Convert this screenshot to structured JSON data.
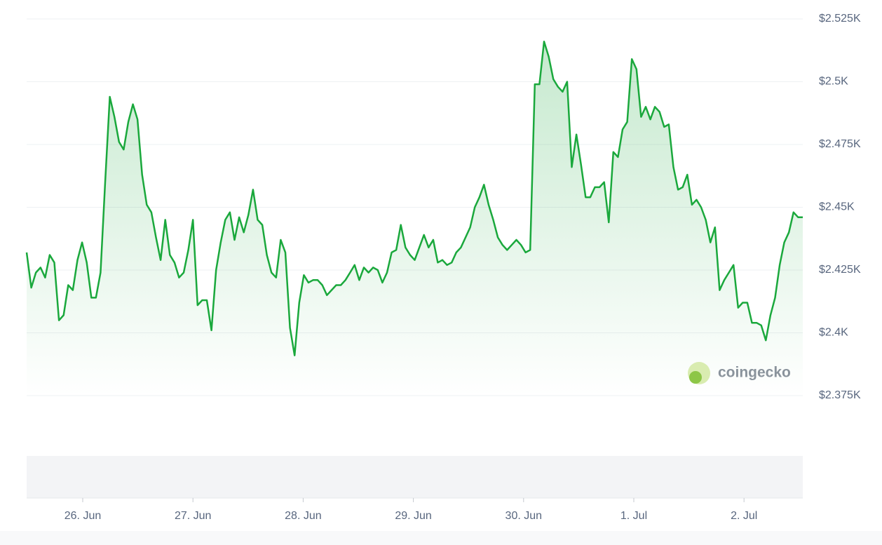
{
  "chart_data": {
    "type": "line",
    "series": [
      {
        "name": "Price",
        "color": "#1aa83c",
        "values": [
          2432,
          2418,
          2424,
          2426,
          2422,
          2431,
          2428,
          2405,
          2407,
          2419,
          2417,
          2429,
          2436,
          2428,
          2414,
          2414,
          2424,
          2460,
          2494,
          2486,
          2476,
          2473,
          2484,
          2491,
          2485,
          2463,
          2451,
          2448,
          2438,
          2429,
          2445,
          2431,
          2428,
          2422,
          2424,
          2433,
          2445,
          2411,
          2413,
          2413,
          2401,
          2425,
          2436,
          2445,
          2448,
          2437,
          2446,
          2440,
          2447,
          2457,
          2445,
          2443,
          2431,
          2424,
          2422,
          2437,
          2432,
          2402,
          2391,
          2412,
          2423,
          2420,
          2421,
          2421,
          2419,
          2415,
          2417,
          2419,
          2419,
          2421,
          2424,
          2427,
          2421,
          2426,
          2424,
          2426,
          2425,
          2420,
          2424,
          2432,
          2433,
          2443,
          2434,
          2431,
          2429,
          2434,
          2439,
          2434,
          2437,
          2428,
          2429,
          2427,
          2428,
          2432,
          2434,
          2438,
          2442,
          2450,
          2454,
          2459,
          2451,
          2445,
          2438,
          2435,
          2433,
          2435,
          2437,
          2435,
          2432,
          2433,
          2499,
          2499,
          2516,
          2510,
          2501,
          2498,
          2496,
          2500,
          2466,
          2479,
          2467,
          2454,
          2454,
          2458,
          2458,
          2460,
          2444,
          2472,
          2470,
          2481,
          2484,
          2509,
          2505,
          2486,
          2490,
          2485,
          2490,
          2488,
          2482,
          2483,
          2466,
          2457,
          2458,
          2463,
          2451,
          2453,
          2450,
          2445,
          2436,
          2442,
          2417,
          2421,
          2424,
          2427,
          2410,
          2412,
          2412,
          2404,
          2404,
          2403,
          2397,
          2407,
          2414,
          2427,
          2436,
          2440,
          2448,
          2446,
          2446
        ]
      }
    ],
    "ylim": [
      2375,
      2525
    ],
    "yticks": [
      {
        "value": 2375,
        "label": "$2.375K"
      },
      {
        "value": 2400,
        "label": "$2.4K"
      },
      {
        "value": 2425,
        "label": "$2.425K"
      },
      {
        "value": 2450,
        "label": "$2.45K"
      },
      {
        "value": 2475,
        "label": "$2.475K"
      },
      {
        "value": 2500,
        "label": "$2.5K"
      },
      {
        "value": 2525,
        "label": "$2.525K"
      }
    ],
    "xticks": [
      "26. Jun",
      "27. Jun",
      "28. Jun",
      "29. Jun",
      "30. Jun",
      "1. Jul",
      "2. Jul"
    ],
    "grid": true,
    "watermark": "coingecko"
  }
}
